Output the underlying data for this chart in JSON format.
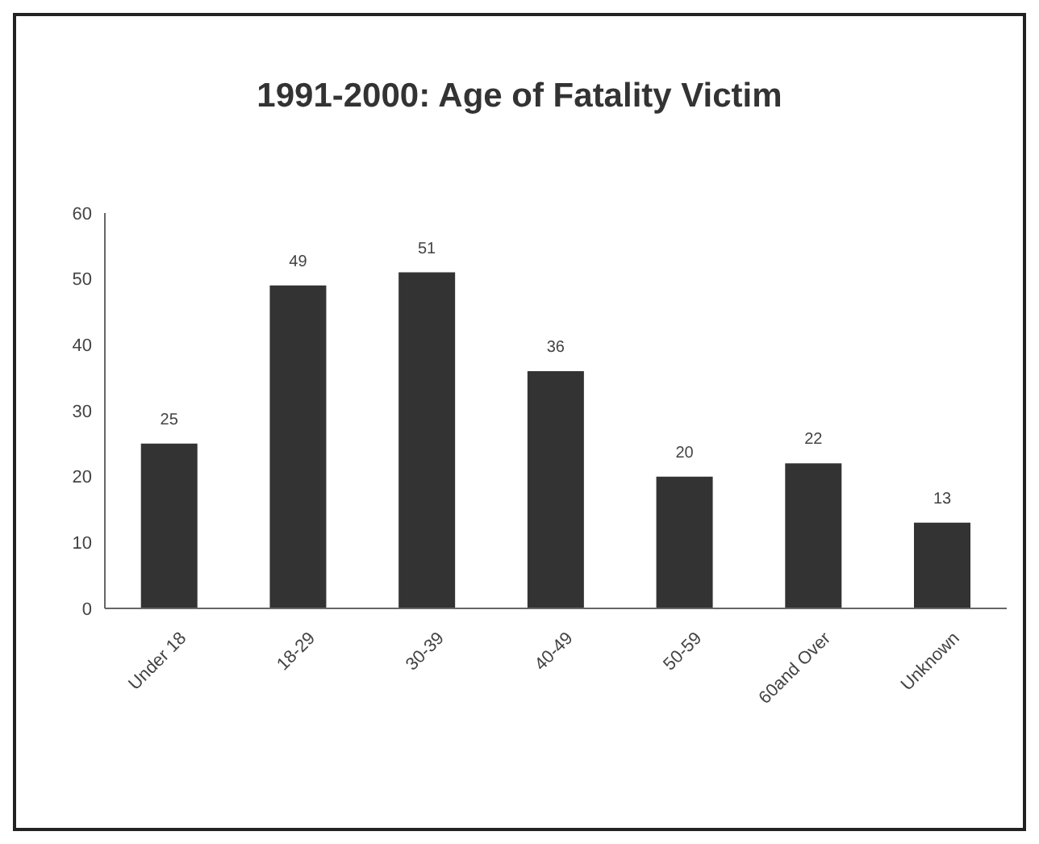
{
  "chart_data": {
    "type": "bar",
    "title": "1991-2000: Age of Fatality Victim",
    "categories": [
      "Under 18",
      "18-29",
      "30-39",
      "40-49",
      "50-59",
      "60and Over",
      "Unknown"
    ],
    "values": [
      25,
      49,
      51,
      36,
      20,
      22,
      13
    ],
    "color": "#333333",
    "ylim": [
      0,
      60
    ],
    "yticks": [
      0,
      10,
      20,
      30,
      40,
      50,
      60
    ],
    "data_labels": true
  }
}
